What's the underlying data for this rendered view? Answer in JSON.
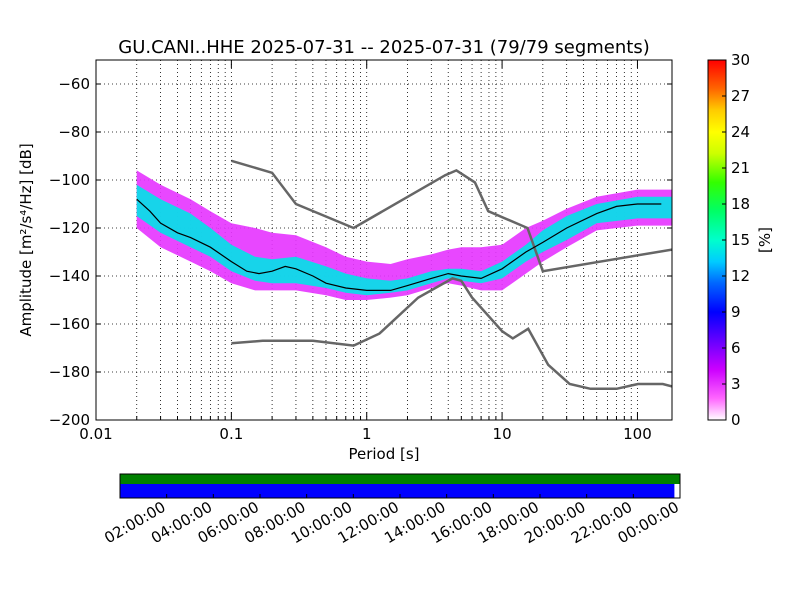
{
  "title": "GU.CANI..HHE   2025-07-31 -- 2025-07-31  (79/79 segments)",
  "colors": {
    "model_curves": "#666666",
    "mode_line": "#000000",
    "coverage_green": "#008000",
    "coverage_blue": "#0000ff",
    "grid": "#000000"
  },
  "chart_data": [
    {
      "type": "heatmap",
      "subtype": "probabilistic-power-spectral-density",
      "title": "GU.CANI..HHE   2025-07-31 -- 2025-07-31  (79/79 segments)",
      "xlabel": "Period [s]",
      "ylabel": "Amplitude [m²/s⁴/Hz] [dB]",
      "xscale": "log",
      "xlim": [
        0.01,
        180
      ],
      "ylim": [
        -200,
        -50
      ],
      "xticks": [
        "0.01",
        "0.1",
        "1",
        "10",
        "100"
      ],
      "yticks": [
        "−60",
        "−80",
        "−100",
        "−120",
        "−140",
        "−160",
        "−180",
        "−200"
      ],
      "grid": true,
      "colorbar": {
        "label": "[%]",
        "range": [
          0,
          30
        ],
        "ticks": [
          "30",
          "27",
          "24",
          "21",
          "18",
          "15",
          "12",
          "9",
          "6",
          "3",
          "0"
        ]
      },
      "mode_curve": {
        "x": [
          0.02,
          0.025,
          0.03,
          0.04,
          0.05,
          0.07,
          0.1,
          0.13,
          0.16,
          0.2,
          0.25,
          0.3,
          0.4,
          0.5,
          0.7,
          1.0,
          1.5,
          2.0,
          3.0,
          4.0,
          5.0,
          7.0,
          10.0,
          15.0,
          20.0,
          30.0,
          50.0,
          70.0,
          100.0,
          150.0
        ],
        "y": [
          -108,
          -113,
          -118,
          -122,
          -124,
          -128,
          -134,
          -138,
          -139,
          -138,
          -136,
          -137,
          -140,
          -143,
          -145,
          -146,
          -146,
          -144,
          -141,
          -139,
          -140,
          -141,
          -137,
          -130,
          -126,
          -120,
          -114,
          -111,
          -110,
          -110
        ]
      },
      "density_bands": [
        {
          "x": [
            0.02,
            0.03,
            0.05,
            0.07,
            0.1,
            0.15,
            0.2,
            0.3,
            0.5,
            0.7,
            1.0,
            1.5,
            2.0,
            3.0,
            4.0,
            5.0,
            7.0,
            10.0,
            15.0,
            20.0,
            30.0,
            50.0,
            100.0,
            180.0
          ],
          "low": [
            -115,
            -122,
            -128,
            -132,
            -138,
            -142,
            -143,
            -143,
            -145,
            -147,
            -148,
            -147,
            -146,
            -143,
            -141,
            -142,
            -143,
            -141,
            -134,
            -130,
            -125,
            -118,
            -116,
            -116
          ],
          "high": [
            -102,
            -108,
            -114,
            -120,
            -127,
            -132,
            -133,
            -132,
            -136,
            -139,
            -141,
            -142,
            -141,
            -138,
            -137,
            -137,
            -138,
            -134,
            -127,
            -121,
            -115,
            -110,
            -107,
            -107
          ],
          "level": 14
        },
        {
          "x": [
            0.02,
            0.03,
            0.05,
            0.07,
            0.1,
            0.15,
            0.2,
            0.3,
            0.5,
            0.7,
            1.0,
            1.5,
            2.0,
            3.0,
            4.0,
            5.0,
            7.0,
            10.0,
            15.0,
            20.0,
            30.0,
            50.0,
            100.0,
            180.0
          ],
          "low": [
            -120,
            -128,
            -134,
            -138,
            -143,
            -146,
            -146,
            -146,
            -148,
            -150,
            -150,
            -149,
            -148,
            -145,
            -143,
            -144,
            -146,
            -146,
            -139,
            -134,
            -128,
            -121,
            -119,
            -119
          ],
          "high": [
            -96,
            -102,
            -108,
            -113,
            -118,
            -120,
            -122,
            -123,
            -128,
            -132,
            -134,
            -135,
            -133,
            -131,
            -129,
            -128,
            -128,
            -127,
            -120,
            -117,
            -112,
            -107,
            -104,
            -104
          ],
          "level": 3
        }
      ],
      "model_curves": [
        {
          "x": [
            0.1,
            0.2,
            0.3,
            0.8,
            3.8,
            4.6,
            6.3,
            7.9,
            15.4,
            20.0,
            180.0
          ],
          "y": [
            -92,
            -97,
            -110,
            -120,
            -98,
            -96,
            -101,
            -113,
            -120,
            -138,
            -129
          ]
        },
        {
          "x": [
            0.1,
            0.17,
            0.4,
            0.8,
            1.24,
            2.4,
            4.3,
            5.0,
            6.0,
            10.0,
            12.0,
            15.6,
            21.9,
            31.6,
            45.0,
            70.0,
            101.0,
            154.0,
            180.0
          ],
          "y": [
            -168,
            -167,
            -167,
            -169,
            -164,
            -149,
            -141,
            -142,
            -149,
            -163,
            -166,
            -162,
            -177,
            -185,
            -187,
            -187,
            -185,
            -185,
            -186
          ]
        }
      ]
    },
    {
      "type": "bar",
      "subtype": "data-coverage-timeline",
      "xticks": [
        "02:00:00",
        "04:00:00",
        "06:00:00",
        "08:00:00",
        "10:00:00",
        "12:00:00",
        "14:00:00",
        "16:00:00",
        "18:00:00",
        "20:00:00",
        "22:00:00",
        "00:00:00"
      ],
      "series": [
        {
          "coverage": [
            0,
            1
          ],
          "color": "#008000"
        },
        {
          "coverage": [
            0,
            0.99
          ],
          "color": "#0000ff"
        }
      ]
    }
  ]
}
